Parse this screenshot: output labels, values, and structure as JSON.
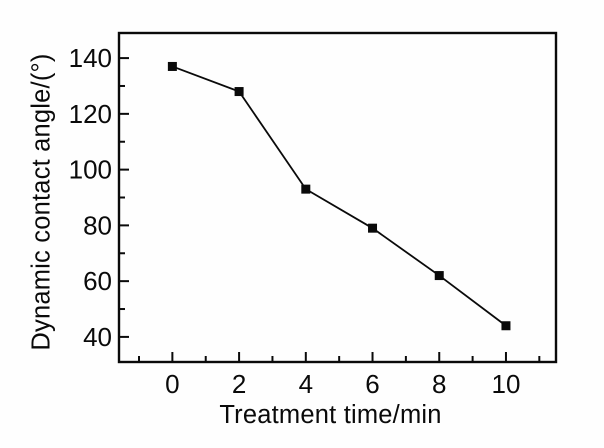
{
  "figure": {
    "background": "#fefefe",
    "ink_color": "#0a0a0a"
  },
  "chart_data": {
    "type": "line",
    "title": "",
    "xlabel": "Treatment time/min",
    "ylabel": "Dynamic contact angle/(°)",
    "x": [
      0,
      2,
      4,
      6,
      8,
      10
    ],
    "y": [
      137,
      128,
      93,
      79,
      62,
      44
    ],
    "series": [
      {
        "name": "dynamic-contact-angle",
        "x": [
          0,
          2,
          4,
          6,
          8,
          10
        ],
        "y": [
          137,
          128,
          93,
          79,
          62,
          44
        ]
      }
    ],
    "marker": "filled-square",
    "line_color": "#0a0a0a",
    "marker_color": "#0a0a0a",
    "axis_color": "#0a0a0a",
    "xlim": [
      -1.6,
      11.5
    ],
    "ylim": [
      31,
      149
    ],
    "x_major_ticks": [
      0,
      2,
      4,
      6,
      8,
      10
    ],
    "x_minor_ticks": [
      -1,
      1,
      3,
      5,
      7,
      9,
      11
    ],
    "y_major_ticks": [
      40,
      60,
      80,
      100,
      120,
      140
    ],
    "y_minor_ticks": [
      50,
      70,
      90,
      110,
      130
    ],
    "grid": false,
    "legend": "none",
    "tick_direction": "in"
  }
}
